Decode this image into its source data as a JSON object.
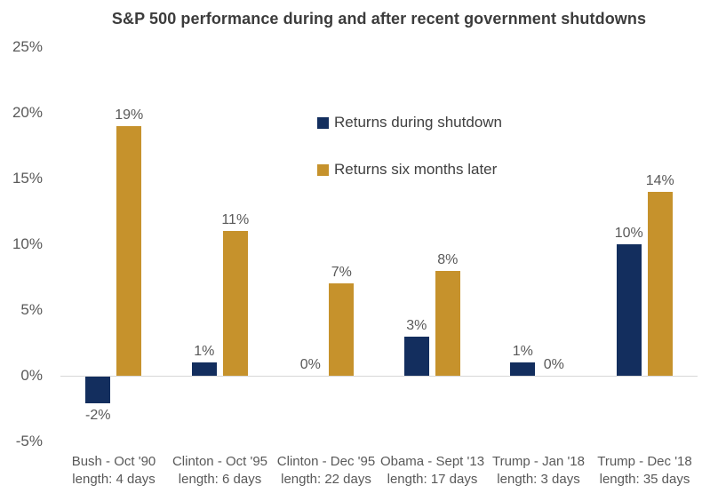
{
  "title": "S&P 500 performance during and after recent government shutdowns",
  "legend": {
    "items": [
      {
        "label": "Returns during shutdown",
        "color": "#132e5e"
      },
      {
        "label": "Returns six months later",
        "color": "#c6922c"
      }
    ]
  },
  "colors": {
    "series_during": "#132e5e",
    "series_later": "#c6922c",
    "axis_text": "#595959",
    "title_text": "#3c3c3c",
    "baseline": "#d8d8d8",
    "background": "#ffffff"
  },
  "chart_data": {
    "type": "bar",
    "title": "S&P 500 performance during and after recent government shutdowns",
    "categories": [
      {
        "name": "Bush - Oct '90",
        "length": "length: 4 days"
      },
      {
        "name": "Clinton - Oct '95",
        "length": "length: 6 days"
      },
      {
        "name": "Clinton - Dec '95",
        "length": "length: 22 days"
      },
      {
        "name": "Obama - Sept '13",
        "length": "length: 17 days"
      },
      {
        "name": "Trump - Jan '18",
        "length": "length: 3 days"
      },
      {
        "name": "Trump - Dec '18",
        "length": "length: 35 days"
      }
    ],
    "series": [
      {
        "name": "Returns during shutdown",
        "color": "#132e5e",
        "values": [
          -2,
          1,
          0,
          3,
          1,
          10
        ],
        "labels": [
          "-2%",
          "1%",
          "0%",
          "3%",
          "1%",
          "10%"
        ]
      },
      {
        "name": "Returns six months later",
        "color": "#c6922c",
        "values": [
          19,
          11,
          7,
          8,
          0,
          14
        ],
        "labels": [
          "19%",
          "11%",
          "7%",
          "8%",
          "0%",
          "14%"
        ]
      }
    ],
    "xlabel": "",
    "ylabel": "",
    "ylim": [
      -5,
      25
    ],
    "yticks": [
      -5,
      0,
      5,
      10,
      15,
      20,
      25
    ],
    "ytick_labels": [
      "-5%",
      "0%",
      "5%",
      "10%",
      "15%",
      "20%",
      "25%"
    ],
    "grid": false,
    "legend_position": "upper-center-inside"
  }
}
